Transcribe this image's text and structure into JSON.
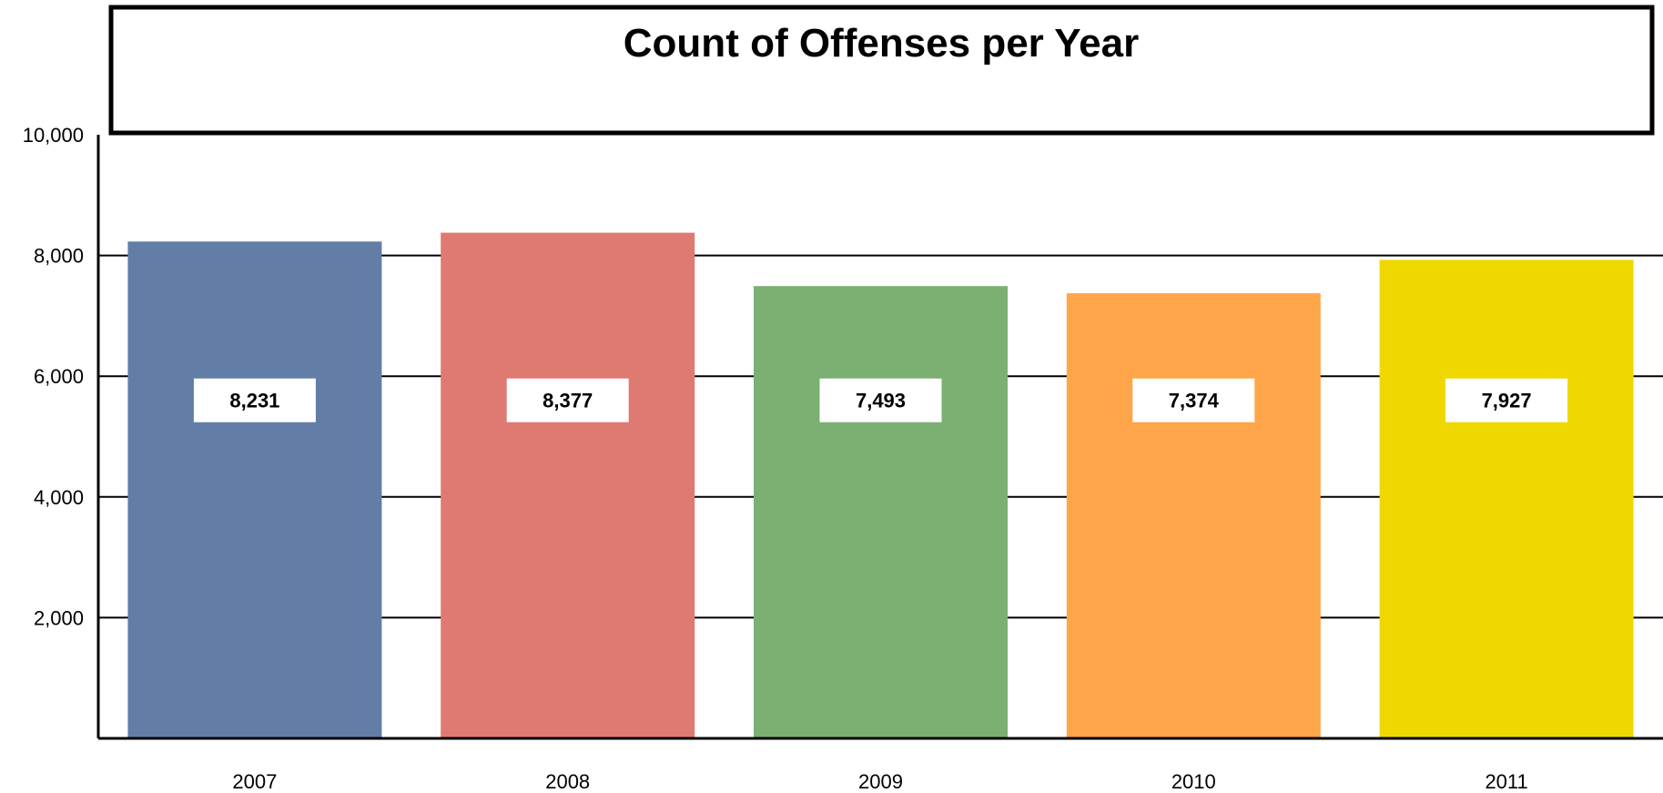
{
  "chart_data": {
    "type": "bar",
    "title": "Count of Offenses per Year",
    "categories": [
      "2007",
      "2008",
      "2009",
      "2010",
      "2011"
    ],
    "values": [
      8231,
      8377,
      7493,
      7374,
      7927
    ],
    "value_labels": [
      "8,231",
      "8,377",
      "7,493",
      "7,374",
      "7,927"
    ],
    "colors": [
      "#637ea6",
      "#df7a72",
      "#7bb072",
      "#ffa54a",
      "#efd800"
    ],
    "ylim": [
      0,
      10000
    ],
    "yticks": [
      2000,
      4000,
      6000,
      8000,
      10000
    ],
    "ytick_labels": [
      "2,000",
      "4,000",
      "6,000",
      "8,000",
      "10,000"
    ],
    "xlabel": "",
    "ylabel": "",
    "grid": true,
    "legend": "none"
  }
}
